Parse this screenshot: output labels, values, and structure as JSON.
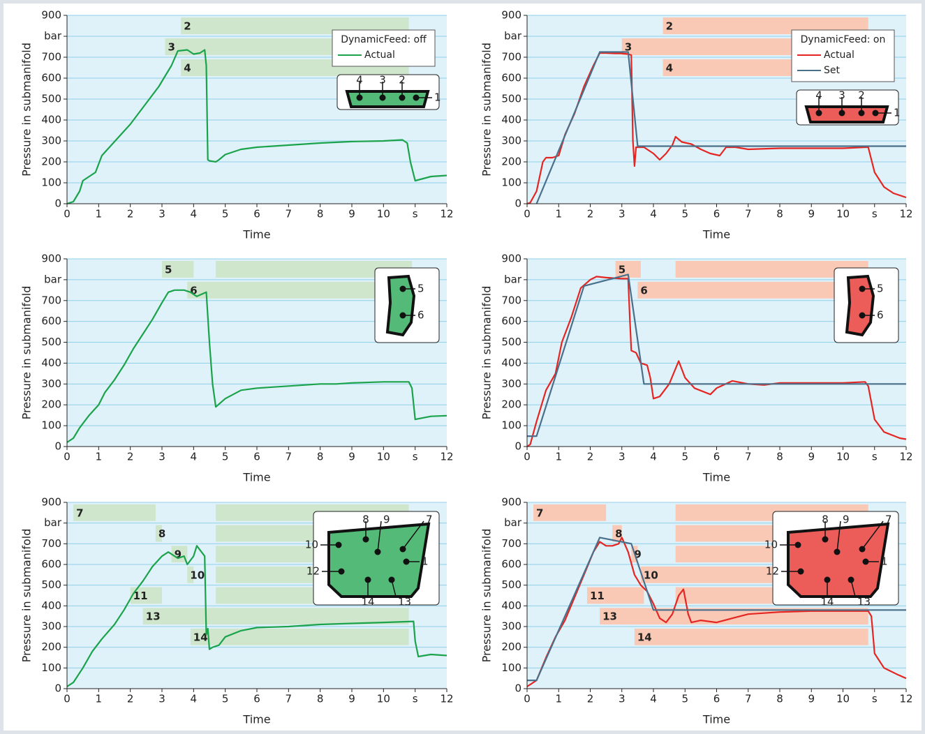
{
  "chart_data": [
    {
      "type": "line",
      "xlabel": "Time",
      "ylabel": "Pressure in submanifold",
      "xlim": [
        0,
        12
      ],
      "ylim": [
        0,
        900
      ],
      "xticks": [
        0,
        1,
        2,
        3,
        4,
        5,
        6,
        7,
        8,
        9,
        10,
        {
          "value": 11,
          "label": "s"
        },
        12
      ],
      "yticks": [
        0,
        100,
        200,
        300,
        400,
        500,
        600,
        700,
        {
          "value": 800,
          "label": "bar"
        },
        900
      ],
      "grid": true,
      "legend_title": "DynamicFeed: off",
      "gate_color": "#cfe6cc",
      "gates": [
        {
          "label": "2",
          "segments": [
            [
              3.6,
              10.8
            ]
          ]
        },
        {
          "label": "3",
          "segments": [
            [
              3.1,
              10.8
            ]
          ]
        },
        {
          "label": "4",
          "segments": [
            [
              3.6,
              10.8
            ]
          ]
        }
      ],
      "inset_labels": [
        "4",
        "3",
        "2",
        "1"
      ],
      "series": [
        {
          "name": "Actual",
          "color": "#1aa34a",
          "x": [
            0,
            0.2,
            0.4,
            0.5,
            0.7,
            0.9,
            1.1,
            1.4,
            1.7,
            2.0,
            2.3,
            2.6,
            2.9,
            3.1,
            3.3,
            3.5,
            3.8,
            4.0,
            4.2,
            4.35,
            4.4,
            4.45,
            4.5,
            4.7,
            4.8,
            5.0,
            5.5,
            6.0,
            7.0,
            8.0,
            9.0,
            10.0,
            10.6,
            10.75,
            10.85,
            11.0,
            11.5,
            12.0
          ],
          "values": [
            0,
            10,
            60,
            110,
            130,
            150,
            230,
            280,
            330,
            380,
            440,
            500,
            560,
            610,
            660,
            730,
            735,
            715,
            720,
            735,
            660,
            210,
            205,
            200,
            210,
            235,
            260,
            270,
            280,
            290,
            297,
            300,
            305,
            290,
            200,
            110,
            130,
            135
          ]
        }
      ]
    },
    {
      "type": "line",
      "xlabel": "Time",
      "ylabel": "Pressure in submanifold",
      "xlim": [
        0,
        12
      ],
      "ylim": [
        0,
        900
      ],
      "xticks": [
        0,
        1,
        2,
        3,
        4,
        5,
        6,
        7,
        8,
        9,
        10,
        {
          "value": 11,
          "label": "s"
        },
        12
      ],
      "yticks": [
        0,
        100,
        200,
        300,
        400,
        500,
        600,
        700,
        {
          "value": 800,
          "label": "bar"
        },
        900
      ],
      "grid": true,
      "legend_title": "DynamicFeed: on",
      "gate_color": "#f9c9b6",
      "gates": [
        {
          "label": "2",
          "segments": [
            [
              4.3,
              10.8
            ]
          ]
        },
        {
          "label": "3",
          "segments": [
            [
              3.0,
              10.8
            ]
          ]
        },
        {
          "label": "4",
          "segments": [
            [
              4.3,
              10.8
            ]
          ]
        }
      ],
      "inset_labels": [
        "4",
        "3",
        "2",
        "1"
      ],
      "series": [
        {
          "name": "Actual",
          "color": "#e52521",
          "x": [
            0,
            0.1,
            0.3,
            0.5,
            0.6,
            0.8,
            1.0,
            1.2,
            1.5,
            1.8,
            2.1,
            2.3,
            2.5,
            2.8,
            3.0,
            3.2,
            3.3,
            3.35,
            3.4,
            3.45,
            3.5,
            3.7,
            4.0,
            4.2,
            4.4,
            4.6,
            4.7,
            4.9,
            5.2,
            5.5,
            5.8,
            6.1,
            6.3,
            6.6,
            7.0,
            8.0,
            9.0,
            10.0,
            10.7,
            10.8,
            11.0,
            11.3,
            11.6,
            12.0
          ],
          "values": [
            0,
            5,
            60,
            200,
            220,
            220,
            230,
            330,
            430,
            560,
            660,
            720,
            720,
            718,
            718,
            715,
            710,
            300,
            180,
            270,
            270,
            270,
            240,
            210,
            240,
            280,
            320,
            295,
            285,
            260,
            240,
            230,
            270,
            270,
            260,
            265,
            265,
            265,
            270,
            270,
            150,
            80,
            50,
            30
          ]
        },
        {
          "name": "Set",
          "color": "#4a6f8a",
          "x": [
            0.3,
            2.3,
            3.2,
            3.5,
            12
          ],
          "values": [
            0,
            725,
            725,
            275,
            275
          ]
        }
      ]
    },
    {
      "type": "line",
      "xlabel": "Time",
      "ylabel": "Pressure in submanifold",
      "xlim": [
        0,
        12
      ],
      "ylim": [
        0,
        900
      ],
      "xticks": [
        0,
        1,
        2,
        3,
        4,
        5,
        6,
        7,
        8,
        9,
        10,
        {
          "value": 11,
          "label": "s"
        },
        12
      ],
      "yticks": [
        0,
        100,
        200,
        300,
        400,
        500,
        600,
        700,
        {
          "value": 800,
          "label": "bar"
        },
        900
      ],
      "grid": true,
      "gate_color": "#cfe6cc",
      "gates": [
        {
          "label": "5",
          "segments": [
            [
              3.0,
              4.0
            ],
            [
              4.7,
              10.9
            ]
          ]
        },
        {
          "label": "6",
          "segments": [
            [
              3.8,
              10.8
            ]
          ]
        }
      ],
      "inset_labels": [
        "5",
        "6"
      ],
      "series": [
        {
          "color": "#1aa34a",
          "x": [
            0,
            0.2,
            0.4,
            0.7,
            1.0,
            1.2,
            1.5,
            1.8,
            2.1,
            2.4,
            2.7,
            3.0,
            3.2,
            3.4,
            3.7,
            3.9,
            4.1,
            4.4,
            4.5,
            4.6,
            4.7,
            5.0,
            5.5,
            6.0,
            7.0,
            8.0,
            8.5,
            9.0,
            10.0,
            10.8,
            10.9,
            11.0,
            11.5,
            12.0
          ],
          "values": [
            20,
            40,
            90,
            150,
            200,
            260,
            320,
            390,
            470,
            540,
            610,
            690,
            740,
            750,
            750,
            740,
            720,
            740,
            500,
            300,
            190,
            230,
            270,
            280,
            290,
            300,
            300,
            305,
            310,
            310,
            280,
            130,
            145,
            148
          ]
        }
      ]
    },
    {
      "type": "line",
      "xlabel": "Time",
      "ylabel": "Pressure in submanifold",
      "xlim": [
        0,
        12
      ],
      "ylim": [
        0,
        900
      ],
      "xticks": [
        0,
        1,
        2,
        3,
        4,
        5,
        6,
        7,
        8,
        9,
        10,
        {
          "value": 11,
          "label": "s"
        },
        12
      ],
      "yticks": [
        0,
        100,
        200,
        300,
        400,
        500,
        600,
        700,
        {
          "value": 800,
          "label": "bar"
        },
        900
      ],
      "grid": true,
      "gate_color": "#f9c9b6",
      "gates": [
        {
          "label": "5",
          "segments": [
            [
              2.8,
              3.6
            ],
            [
              4.7,
              10.8
            ]
          ]
        },
        {
          "label": "6",
          "segments": [
            [
              3.5,
              10.8
            ]
          ]
        }
      ],
      "inset_labels": [
        "5",
        "6"
      ],
      "series": [
        {
          "color": "#e52521",
          "x": [
            0,
            0.1,
            0.3,
            0.6,
            0.9,
            1.1,
            1.4,
            1.7,
            2.0,
            2.2,
            2.5,
            3.0,
            3.2,
            3.25,
            3.3,
            3.45,
            3.6,
            3.8,
            3.9,
            4.0,
            4.2,
            4.5,
            4.8,
            5.0,
            5.3,
            5.8,
            6.0,
            6.5,
            7.0,
            7.5,
            8.0,
            9.0,
            10.0,
            10.7,
            10.8,
            11.0,
            11.3,
            11.8,
            12.0
          ],
          "values": [
            0,
            10,
            120,
            270,
            350,
            500,
            620,
            760,
            800,
            815,
            810,
            805,
            805,
            620,
            460,
            450,
            400,
            390,
            330,
            230,
            240,
            300,
            410,
            330,
            280,
            250,
            280,
            315,
            300,
            295,
            305,
            305,
            305,
            310,
            290,
            130,
            70,
            40,
            35
          ]
        },
        {
          "color": "#4a6f8a",
          "x": [
            0,
            0.3,
            1.8,
            3.2,
            3.7,
            12
          ],
          "values": [
            50,
            50,
            770,
            825,
            300,
            300
          ]
        }
      ]
    },
    {
      "type": "line",
      "xlabel": "Time",
      "ylabel": "Pressure in submanifold",
      "xlim": [
        0,
        12
      ],
      "ylim": [
        0,
        900
      ],
      "xticks": [
        0,
        1,
        2,
        3,
        4,
        5,
        6,
        7,
        8,
        9,
        10,
        {
          "value": 11,
          "label": "s"
        },
        12
      ],
      "yticks": [
        0,
        100,
        200,
        300,
        400,
        500,
        600,
        700,
        {
          "value": 800,
          "label": "bar"
        },
        900
      ],
      "grid": true,
      "gate_color": "#cfe6cc",
      "gates": [
        {
          "label": "7",
          "segments": [
            [
              0.2,
              2.8
            ],
            [
              4.7,
              10.8
            ]
          ]
        },
        {
          "label": "8",
          "segments": [
            [
              2.8,
              3.0
            ],
            [
              4.7,
              10.8
            ]
          ]
        },
        {
          "label": "9",
          "segments": [
            [
              3.3,
              3.8
            ],
            [
              4.7,
              10.8
            ]
          ]
        },
        {
          "label": "10",
          "segments": [
            [
              3.8,
              4.0
            ],
            [
              4.7,
              10.8
            ]
          ]
        },
        {
          "label": "11",
          "segments": [
            [
              2.0,
              3.0
            ],
            [
              4.7,
              10.8
            ]
          ]
        },
        {
          "label": "13",
          "segments": [
            [
              2.4,
              10.8
            ]
          ]
        },
        {
          "label": "14",
          "segments": [
            [
              3.9,
              10.8
            ]
          ]
        }
      ],
      "inset_labels": [
        "8",
        "9",
        "7",
        "10",
        "1",
        "12",
        "14",
        "13"
      ],
      "series": [
        {
          "color": "#1aa34a",
          "x": [
            0,
            0.2,
            0.5,
            0.8,
            1.1,
            1.5,
            1.8,
            2.1,
            2.4,
            2.7,
            3.0,
            3.2,
            3.5,
            3.7,
            3.8,
            3.9,
            4.0,
            4.1,
            4.2,
            4.35,
            4.4,
            4.45,
            4.5,
            4.6,
            4.8,
            5.0,
            5.5,
            6.0,
            7.0,
            8.0,
            9.0,
            10.0,
            10.95,
            11.0,
            11.1,
            11.5,
            12.0
          ],
          "values": [
            10,
            30,
            100,
            180,
            240,
            310,
            380,
            460,
            520,
            590,
            640,
            660,
            630,
            640,
            600,
            620,
            640,
            690,
            670,
            640,
            260,
            290,
            190,
            200,
            210,
            250,
            280,
            295,
            300,
            310,
            315,
            320,
            325,
            230,
            155,
            165,
            160
          ]
        }
      ]
    },
    {
      "type": "line",
      "xlabel": "Time",
      "ylabel": "Pressure in submanifold",
      "xlim": [
        0,
        12
      ],
      "ylim": [
        0,
        900
      ],
      "xticks": [
        0,
        1,
        2,
        3,
        4,
        5,
        6,
        7,
        8,
        9,
        10,
        {
          "value": 11,
          "label": "s"
        },
        12
      ],
      "yticks": [
        0,
        100,
        200,
        300,
        400,
        500,
        600,
        700,
        {
          "value": 800,
          "label": "bar"
        },
        900
      ],
      "grid": true,
      "gate_color": "#f9c9b6",
      "gates": [
        {
          "label": "7",
          "segments": [
            [
              0.2,
              2.5
            ],
            [
              4.7,
              10.8
            ]
          ]
        },
        {
          "label": "8",
          "segments": [
            [
              2.7,
              3.0
            ],
            [
              4.7,
              10.8
            ]
          ]
        },
        {
          "label": "9",
          "segments": [
            [
              3.3,
              3.5
            ],
            [
              4.7,
              10.8
            ]
          ]
        },
        {
          "label": "10",
          "segments": [
            [
              3.6,
              10.8
            ]
          ]
        },
        {
          "label": "11",
          "segments": [
            [
              1.9,
              3.7
            ],
            [
              4.7,
              10.8
            ]
          ]
        },
        {
          "label": "13",
          "segments": [
            [
              2.3,
              10.8
            ]
          ]
        },
        {
          "label": "14",
          "segments": [
            [
              3.4,
              10.8
            ]
          ]
        }
      ],
      "inset_labels": [
        "8",
        "9",
        "7",
        "10",
        "1",
        "12",
        "14",
        "13"
      ],
      "series": [
        {
          "color": "#e52521",
          "x": [
            0,
            0.3,
            0.6,
            0.9,
            1.2,
            1.5,
            1.8,
            2.1,
            2.3,
            2.5,
            2.7,
            2.9,
            3.0,
            3.2,
            3.4,
            3.6,
            3.8,
            4.0,
            4.2,
            4.4,
            4.6,
            4.8,
            4.95,
            5.1,
            5.2,
            5.5,
            6.0,
            6.5,
            7.0,
            8.0,
            9.0,
            10.0,
            10.8,
            10.9,
            11.0,
            11.3,
            11.7,
            12.0
          ],
          "values": [
            10,
            40,
            150,
            250,
            330,
            440,
            550,
            660,
            710,
            690,
            690,
            700,
            730,
            660,
            550,
            500,
            470,
            410,
            340,
            320,
            360,
            450,
            480,
            360,
            320,
            330,
            320,
            340,
            360,
            370,
            375,
            375,
            375,
            350,
            170,
            100,
            70,
            50
          ]
        },
        {
          "color": "#4a6f8a",
          "x": [
            0,
            0.3,
            2.3,
            3.3,
            4.0,
            12
          ],
          "values": [
            40,
            40,
            730,
            700,
            380,
            380
          ]
        }
      ]
    }
  ]
}
